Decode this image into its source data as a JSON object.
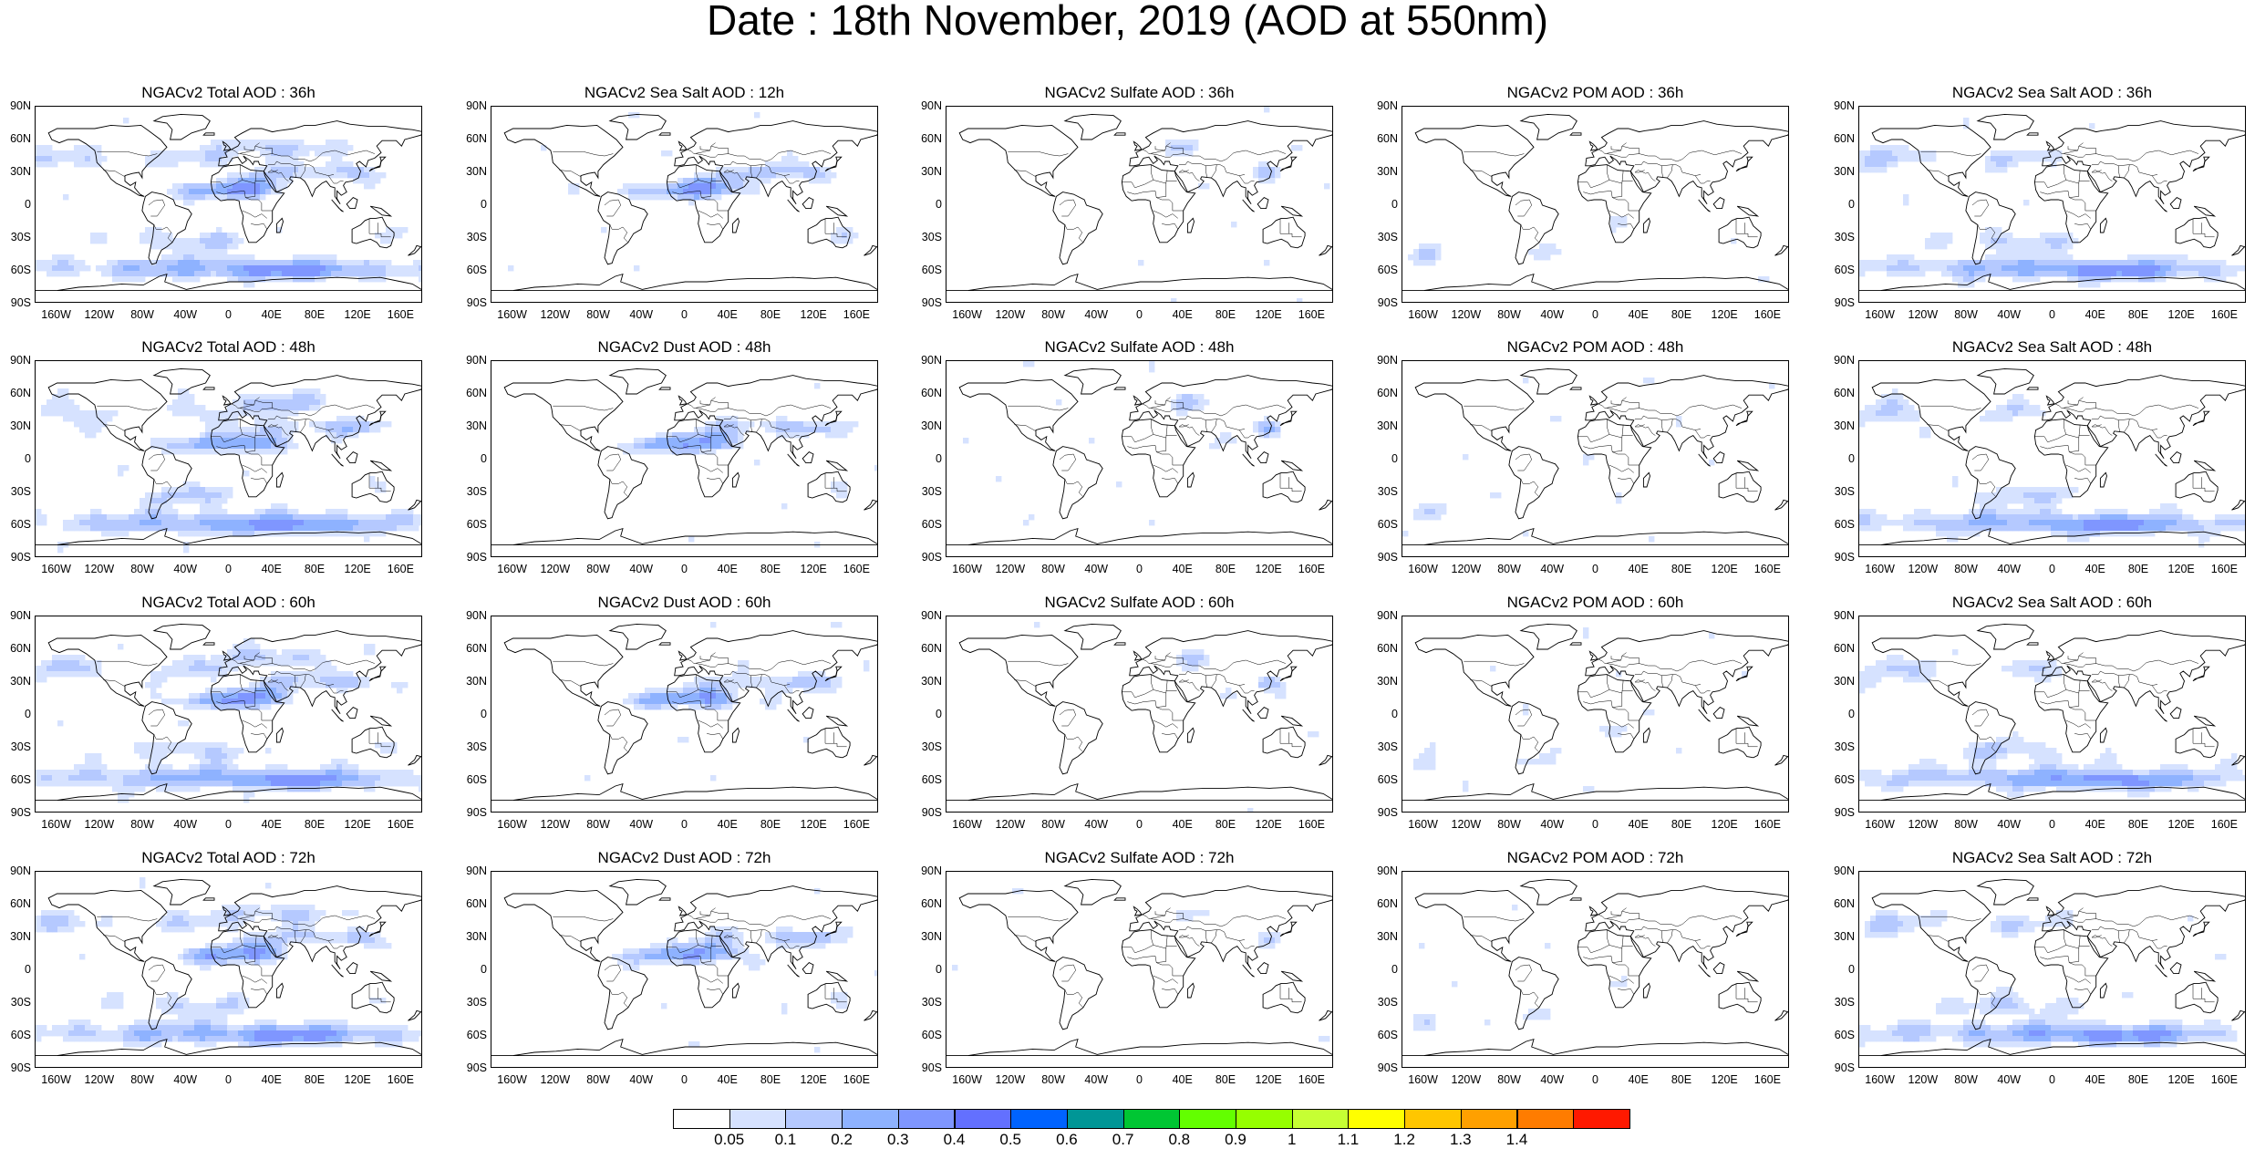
{
  "title": "Date : 18th November, 2019 (AOD at 550nm)",
  "lat_labels": [
    "90N",
    "60N",
    "30N",
    "0",
    "30S",
    "60S",
    "90S"
  ],
  "lon_labels": [
    "160W",
    "120W",
    "80W",
    "40W",
    "0",
    "40E",
    "80E",
    "120E",
    "160E"
  ],
  "columns": [
    "total",
    "seasalt_dust",
    "sulfate",
    "pom",
    "seasalt"
  ],
  "panels": [
    {
      "title": "NGACv2 Total AOD : 36h",
      "kind": "total",
      "seed": 3
    },
    {
      "title": "NGACv2 Sea Salt  AOD : 12h",
      "kind": "dust",
      "seed": 7
    },
    {
      "title": "NGACv2 Sulfate AOD : 36h",
      "kind": "sulfate",
      "seed": 11
    },
    {
      "title": "NGACv2 POM AOD : 36h",
      "kind": "pom",
      "seed": 13
    },
    {
      "title": "NGACv2 Sea Salt AOD : 36h",
      "kind": "seasalt",
      "seed": 17
    },
    {
      "title": "NGACv2 Total AOD : 48h",
      "kind": "total",
      "seed": 19
    },
    {
      "title": "NGACv2 Dust AOD : 48h",
      "kind": "dust",
      "seed": 23
    },
    {
      "title": "NGACv2 Sulfate AOD : 48h",
      "kind": "sulfate",
      "seed": 29
    },
    {
      "title": "NGACv2 POM AOD : 48h",
      "kind": "pom",
      "seed": 31
    },
    {
      "title": "NGACv2 Sea Salt AOD : 48h",
      "kind": "seasalt",
      "seed": 37
    },
    {
      "title": "NGACv2 Total AOD : 60h",
      "kind": "total",
      "seed": 41
    },
    {
      "title": "NGACv2 Dust AOD : 60h",
      "kind": "dust",
      "seed": 43
    },
    {
      "title": "NGACv2 Sulfate AOD : 60h",
      "kind": "sulfate",
      "seed": 47
    },
    {
      "title": "NGACv2 POM AOD : 60h",
      "kind": "pom",
      "seed": 53
    },
    {
      "title": "NGACv2 Sea Salt AOD : 60h",
      "kind": "seasalt",
      "seed": 59
    },
    {
      "title": "NGACv2 Total AOD : 72h",
      "kind": "total",
      "seed": 61
    },
    {
      "title": "NGACv2 Dust AOD : 72h",
      "kind": "dust",
      "seed": 67
    },
    {
      "title": "NGACv2 Sulfate AOD : 72h",
      "kind": "sulfate",
      "seed": 71
    },
    {
      "title": "NGACv2 POM AOD : 72h",
      "kind": "pom",
      "seed": 73
    },
    {
      "title": "NGACv2 Sea Salt  AOD : 72h",
      "kind": "seasalt",
      "seed": 79
    }
  ],
  "colorbar": {
    "levels": [
      "0.05",
      "0.1",
      "0.2",
      "0.3",
      "0.4",
      "0.5",
      "0.6",
      "0.7",
      "0.8",
      "0.9",
      "1",
      "1.1",
      "1.2",
      "1.3",
      "1.4"
    ],
    "colors": [
      "#ffffff",
      "#d6e2ff",
      "#b5c9ff",
      "#8eb2ff",
      "#7f96ff",
      "#6370ff",
      "#0063ff",
      "#009696",
      "#00c633",
      "#63ff00",
      "#96ff00",
      "#c6ff33",
      "#ffff00",
      "#ffc600",
      "#ffa000",
      "#ff7c00",
      "#ff1900"
    ]
  },
  "map_colors": {
    "land_line": "#000000",
    "light": "#d6e2ff",
    "mid": "#b5c9ff",
    "dark": "#8eb2ff",
    "deep": "#7f96ff"
  }
}
